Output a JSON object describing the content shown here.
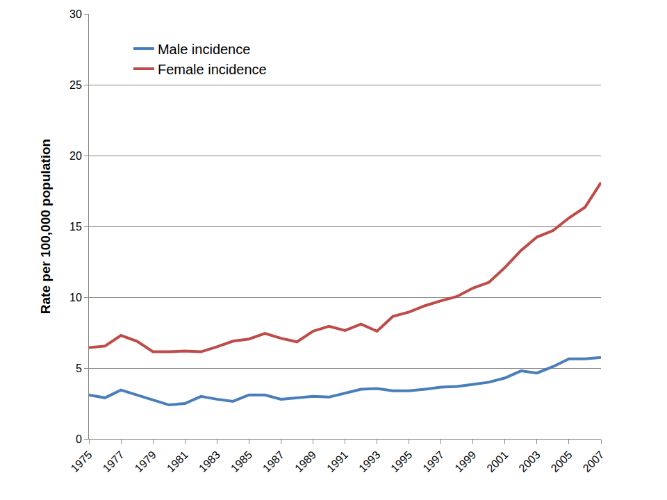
{
  "chart_data": {
    "type": "line",
    "y_label": "Rate per 100,000 population",
    "x": [
      1975,
      1976,
      1977,
      1978,
      1979,
      1980,
      1981,
      1982,
      1983,
      1984,
      1985,
      1986,
      1987,
      1988,
      1989,
      1990,
      1991,
      1992,
      1993,
      1994,
      1995,
      1996,
      1997,
      1998,
      1999,
      2000,
      2001,
      2002,
      2003,
      2004,
      2005,
      2006,
      2007
    ],
    "series": [
      {
        "name": "Male incidence",
        "color": "#4a7ebb",
        "values": [
          3.1,
          2.9,
          3.45,
          3.1,
          2.7,
          2.4,
          2.5,
          3.0,
          2.8,
          2.65,
          3.1,
          3.1,
          2.8,
          2.9,
          3.0,
          2.95,
          3.2,
          3.5,
          3.55,
          3.4,
          3.4,
          3.5,
          3.65,
          3.7,
          3.85,
          4.0,
          4.3,
          4.8,
          4.65,
          5.1,
          5.65,
          5.65,
          5.75
        ]
      },
      {
        "name": "Female incidence",
        "color": "#be4b48",
        "values": [
          6.45,
          6.55,
          7.3,
          6.9,
          6.15,
          6.15,
          6.2,
          6.15,
          6.5,
          6.9,
          7.05,
          7.45,
          7.1,
          6.85,
          7.6,
          7.95,
          7.65,
          8.1,
          7.6,
          8.65,
          8.95,
          9.4,
          9.75,
          10.05,
          10.65,
          11.05,
          12.1,
          13.3,
          14.25,
          14.7,
          15.6,
          16.35,
          18.1
        ]
      }
    ],
    "xlim": [
      1975,
      2007
    ],
    "xticks": [
      1975,
      1977,
      1979,
      1981,
      1983,
      1985,
      1987,
      1989,
      1991,
      1993,
      1995,
      1997,
      1999,
      2001,
      2003,
      2005,
      2007
    ],
    "ylim": [
      0,
      30
    ],
    "yticks": [
      0,
      5,
      10,
      15,
      20,
      25,
      30
    ],
    "grid": true,
    "legend": "upper left"
  }
}
